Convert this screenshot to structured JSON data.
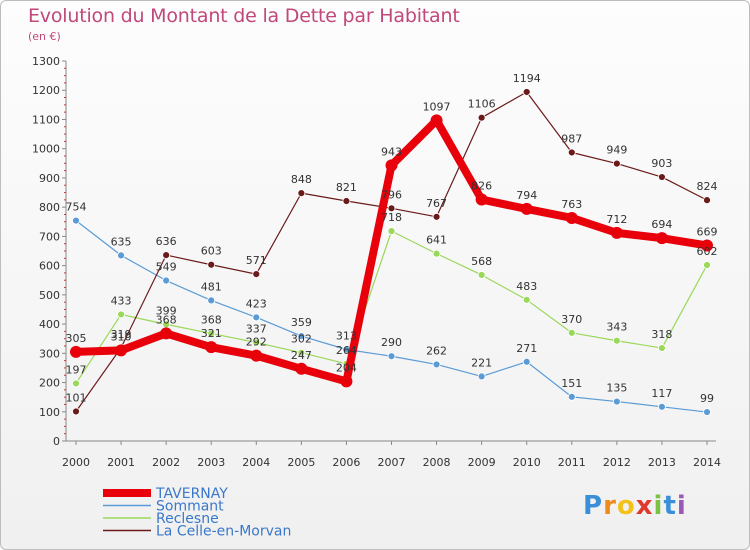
{
  "header": {
    "title": "Evolution du Montant de la Dette par Habitant",
    "subtitle": "(en €)"
  },
  "logo": {
    "letters": [
      "P",
      "r",
      "o",
      "x",
      "i",
      "t",
      "i"
    ],
    "colors": [
      "#3b8fd8",
      "#f08a1c",
      "#f2c21a",
      "#e03a2f",
      "#7cc242",
      "#3b8fd8",
      "#9b59b6"
    ]
  },
  "chart_data": {
    "type": "line",
    "title": "Evolution du Montant de la Dette par Habitant",
    "subtitle": "(en €)",
    "x": [
      "2000",
      "2001",
      "2002",
      "2003",
      "2004",
      "2005",
      "2006",
      "2007",
      "2008",
      "2009",
      "2010",
      "2011",
      "2012",
      "2013",
      "2014"
    ],
    "ylim": [
      0,
      1300
    ],
    "yticks": [
      0,
      100,
      200,
      300,
      400,
      500,
      600,
      700,
      800,
      900,
      1000,
      1100,
      1200,
      1300
    ],
    "grid": false,
    "legend_position": "bottom-left",
    "series": [
      {
        "name": "Sommant",
        "color": "#5b9bd5",
        "values": [
          754,
          635,
          549,
          481,
          423,
          359,
          313,
          290,
          262,
          221,
          271,
          151,
          135,
          117,
          99
        ]
      },
      {
        "name": "Reclesne",
        "color": "#9ad85a",
        "values": [
          197,
          433,
          399,
          368,
          337,
          302,
          264,
          718,
          641,
          568,
          483,
          370,
          343,
          318,
          602
        ]
      },
      {
        "name": "La Celle-en-Morvan",
        "color": "#6b1a1a",
        "values": [
          101,
          319,
          636,
          603,
          571,
          848,
          821,
          796,
          767,
          1106,
          1194,
          987,
          949,
          903,
          824
        ]
      },
      {
        "name": "TAVERNAY",
        "color": "#e8000b",
        "values": [
          305,
          310,
          368,
          321,
          292,
          247,
          204,
          943,
          1097,
          826,
          794,
          763,
          712,
          694,
          669
        ]
      }
    ],
    "legend": [
      "TAVERNAY",
      "Sommant",
      "Reclesne",
      "La Celle-en-Morvan"
    ]
  }
}
